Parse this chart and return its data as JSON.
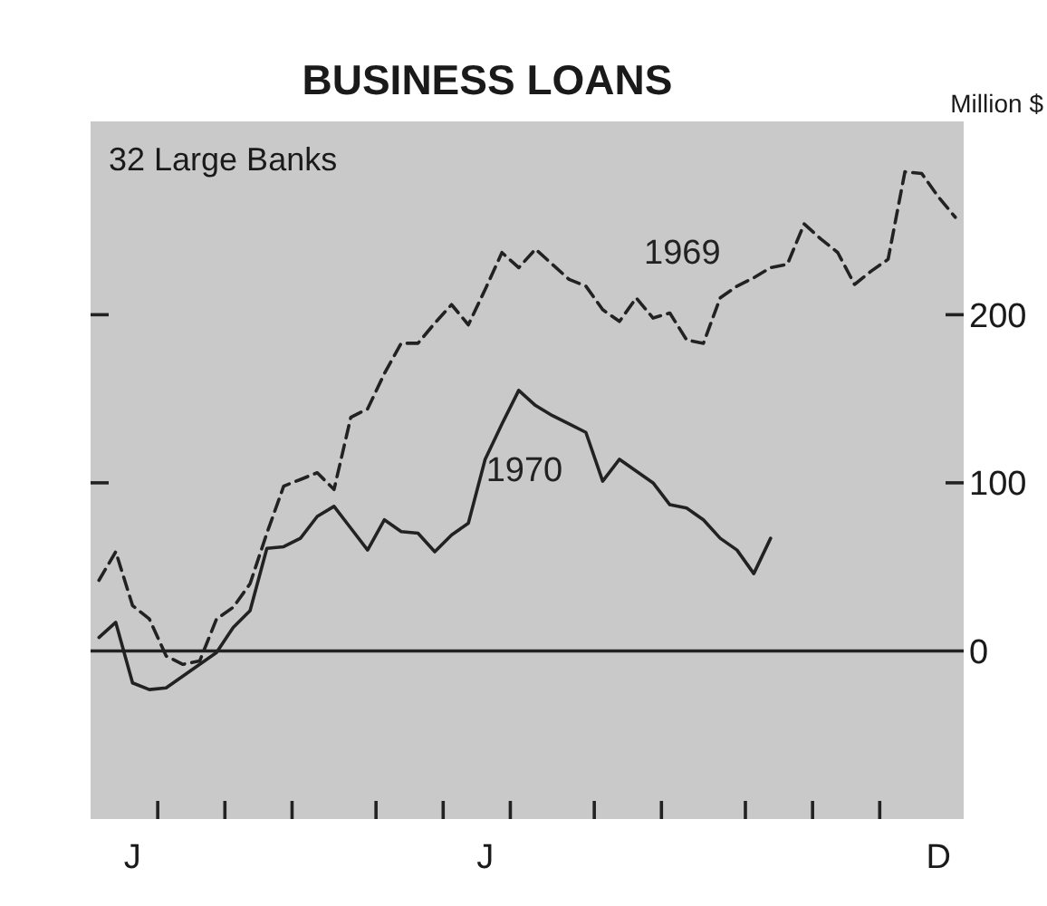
{
  "chart_data": {
    "type": "line",
    "title": "BUSINESS LOANS",
    "ylabel": "Million $",
    "annotations": [
      "32 Large Banks"
    ],
    "categories": [
      null,
      null,
      "J",
      null,
      null,
      null,
      null,
      null,
      null,
      null,
      null,
      null,
      null,
      null,
      null,
      null,
      null,
      null,
      null,
      null,
      null,
      null,
      null,
      "J",
      null,
      null,
      null,
      null,
      null,
      null,
      null,
      null,
      null,
      null,
      null,
      null,
      null,
      null,
      null,
      null,
      null,
      null,
      null,
      null,
      null,
      null,
      null,
      null,
      null,
      null,
      "D",
      null
    ],
    "ylim": [
      -100,
      315
    ],
    "yticks": [
      0,
      100,
      200
    ],
    "ref_lines": [
      {
        "axis": "y",
        "value": 0,
        "color": "#222222"
      }
    ],
    "grid": false,
    "legend": false,
    "marker": "none",
    "series": [
      {
        "name": "1969",
        "color": "#222222",
        "line_style": "dashed",
        "values": [
          42,
          59,
          27,
          19,
          -3,
          -8,
          -6,
          19,
          26,
          40,
          70,
          98,
          102,
          106,
          96,
          139,
          144,
          165,
          183,
          183,
          195,
          206,
          194,
          215,
          237,
          228,
          239,
          230,
          221,
          217,
          203,
          196,
          210,
          198,
          201,
          185,
          183,
          210,
          217,
          222,
          228,
          230,
          254,
          245,
          237,
          218,
          226,
          233,
          285,
          284,
          270,
          258
        ]
      },
      {
        "name": "1970",
        "color": "#222222",
        "line_style": "solid",
        "values": [
          8,
          17,
          -19,
          -23,
          -22,
          -15,
          -8,
          -1,
          14,
          24,
          61,
          62,
          67,
          80,
          86,
          73,
          60,
          78,
          71,
          70,
          59,
          69,
          76,
          114,
          135,
          155,
          146,
          140,
          135,
          130,
          101,
          114,
          107,
          100,
          87,
          85,
          78,
          67,
          60,
          46,
          67,
          null,
          null,
          null,
          null,
          null,
          null,
          null,
          null,
          null,
          null,
          null
        ]
      }
    ]
  }
}
